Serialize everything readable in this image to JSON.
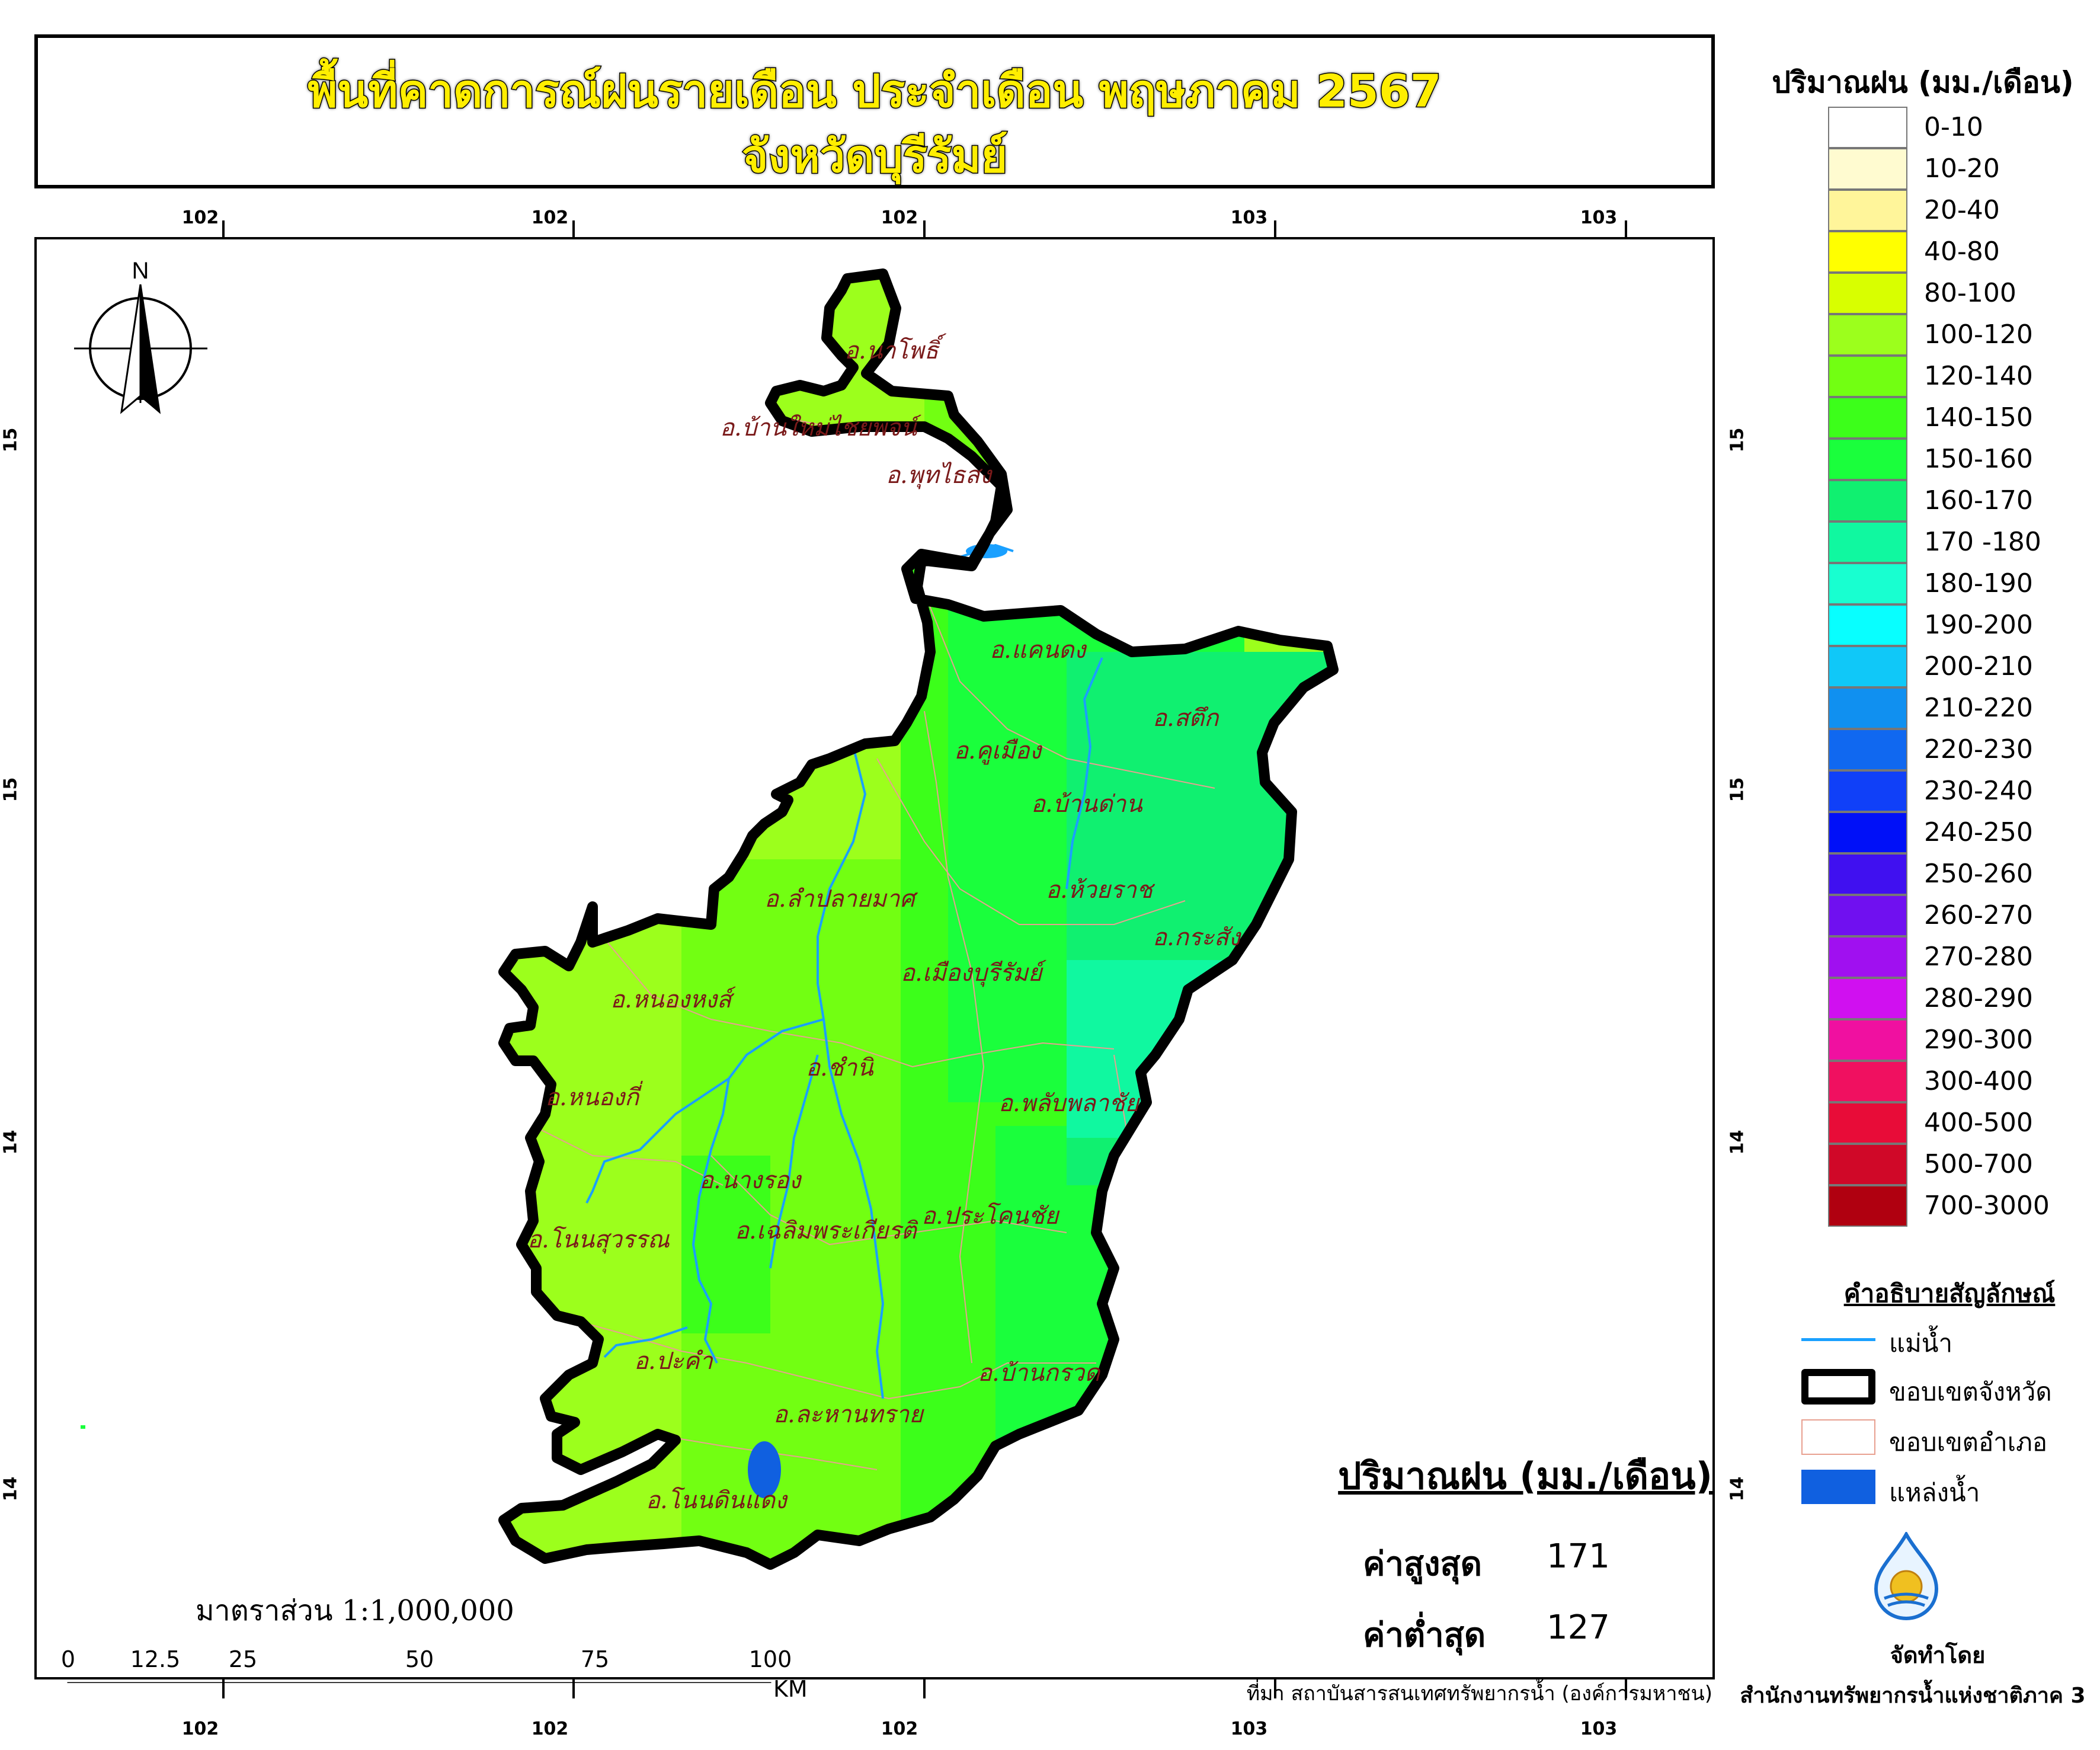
{
  "title": {
    "line1": "พื้นที่คาดการณ์ฝนรายเดือน ประจำเดือน พฤษภาคม 2567",
    "line2": "จังหวัดบุรีรัมย์"
  },
  "coordinates": {
    "top": [
      "102",
      "102",
      "102",
      "103",
      "103"
    ],
    "bottom": [
      "102",
      "102",
      "102",
      "103",
      "103"
    ],
    "left": [
      "15",
      "15",
      "14",
      "14"
    ],
    "right": [
      "15",
      "15",
      "14",
      "14"
    ]
  },
  "north_arrow": {
    "label": "N",
    "icon": "north-arrow-icon"
  },
  "districts": [
    "อ.นาโพธิ์",
    "อ.บ้านใหม่ไชยพจน์",
    "อ.พุทไธสง",
    "อ.แคนดง",
    "อ.สตึก",
    "อ.คูเมือง",
    "อ.บ้านด่าน",
    "อ.ลำปลายมาศ",
    "อ.ห้วยราช",
    "อ.กระสัง",
    "อ.เมืองบุรีรัมย์",
    "อ.หนองหงส์",
    "อ.ชำนิ",
    "อ.หนองกี่",
    "อ.พลับพลาชัย",
    "อ.นางรอง",
    "อ.ประโคนชัย",
    "อ.โนนสุวรรณ",
    "อ.เฉลิมพระเกียรติ",
    "อ.ปะคำ",
    "อ.บ้านกรวด",
    "อ.ละหานทราย",
    "อ.โนนดินแดง"
  ],
  "legend": {
    "title": "ปริมาณฝน (มม./เดือน)",
    "classes": [
      {
        "label": "0-10",
        "color": "#ffffff"
      },
      {
        "label": "10-20",
        "color": "#fffbd0"
      },
      {
        "label": "20-40",
        "color": "#fff59a"
      },
      {
        "label": "40-80",
        "color": "#ffff00"
      },
      {
        "label": "80-100",
        "color": "#d8ff00"
      },
      {
        "label": "100-120",
        "color": "#9cff1c"
      },
      {
        "label": "120-140",
        "color": "#72ff12"
      },
      {
        "label": "140-150",
        "color": "#3cff1a"
      },
      {
        "label": "150-160",
        "color": "#1aff3c"
      },
      {
        "label": "160-170",
        "color": "#10f070"
      },
      {
        "label": "170 -180",
        "color": "#10f8a0"
      },
      {
        "label": "180-190",
        "color": "#18ffd0"
      },
      {
        "label": "190-200",
        "color": "#08ffff"
      },
      {
        "label": "200-210",
        "color": "#10c8f8"
      },
      {
        "label": "210-220",
        "color": "#1090f0"
      },
      {
        "label": "220-230",
        "color": "#1068f0"
      },
      {
        "label": "230-240",
        "color": "#1040f8"
      },
      {
        "label": "240-250",
        "color": "#0010f8"
      },
      {
        "label": "250-260",
        "color": "#4010f0"
      },
      {
        "label": "260-270",
        "color": "#7010f0"
      },
      {
        "label": "270-280",
        "color": "#a010f0"
      },
      {
        "label": "280-290",
        "color": "#d010f0"
      },
      {
        "label": "290-300",
        "color": "#f010a0"
      },
      {
        "label": "300-400",
        "color": "#f01060"
      },
      {
        "label": "400-500",
        "color": "#e80c38"
      },
      {
        "label": "500-700",
        "color": "#d00828"
      },
      {
        "label": "700-3000",
        "color": "#b00010"
      }
    ]
  },
  "symbols": {
    "title": "คำอธิบายสัญลักษณ์",
    "items": [
      {
        "label": "แม่น้ำ",
        "icon": "river-line-icon",
        "color": "#1aa0ff"
      },
      {
        "label": "ขอบเขตจังหวัด",
        "icon": "province-boundary-icon",
        "color": "#000000"
      },
      {
        "label": "ขอบเขตอำเภอ",
        "icon": "district-boundary-icon",
        "color": "#e8a090"
      },
      {
        "label": "แหล่งน้ำ",
        "icon": "water-body-icon",
        "color": "#1060e0"
      }
    ]
  },
  "stats": {
    "title": "ปริมาณฝน (มม./เดือน)",
    "max_label": "ค่าสูงสุด",
    "max_value": "171",
    "min_label": "ค่าต่ำสุด",
    "min_value": "127"
  },
  "scale": {
    "text": "มาตราส่วน 1:1,000,000",
    "ticks": [
      "0",
      "12.5",
      "25",
      "50",
      "75",
      "100"
    ],
    "unit": "KM"
  },
  "source": "ที่มา  สถาบันสารสนเทศทรัพยากรน้ำ (องค์การมหาชน)",
  "maker": {
    "label": "จัดทำโดย",
    "org": "สำนักงานทรัพยากรน้ำแห่งชาติภาค 3",
    "logo_icon": "onwr-logo-icon"
  }
}
